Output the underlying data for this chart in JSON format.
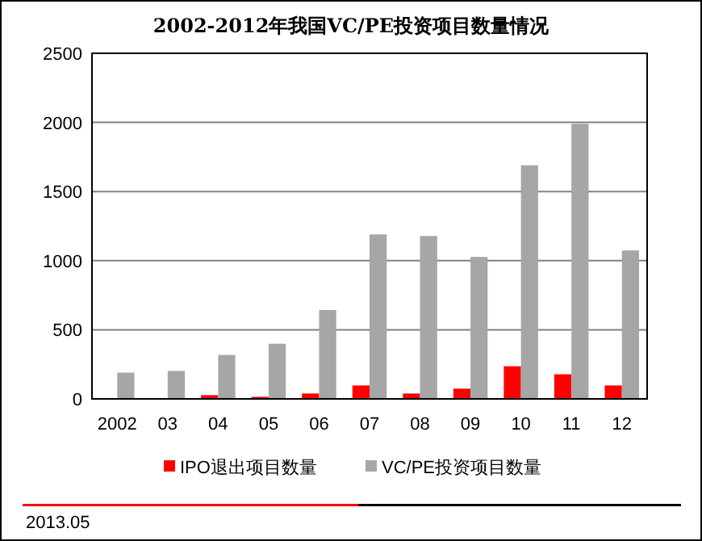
{
  "chart_data": {
    "type": "bar",
    "title": "2002-2012年我国VC/PE投资项目数量情况",
    "categories": [
      "2002",
      "03",
      "04",
      "05",
      "06",
      "07",
      "08",
      "09",
      "10",
      "11",
      "12"
    ],
    "series": [
      {
        "name": "IPO退出项目数量",
        "color": "#ff0000",
        "values": [
          0,
          0,
          27,
          15,
          39,
          97,
          39,
          74,
          236,
          178,
          97
        ]
      },
      {
        "name": "VC/PE投资项目数量",
        "color": "#a6a6a6",
        "values": [
          190,
          202,
          318,
          399,
          643,
          1190,
          1178,
          1027,
          1690,
          1990,
          1074
        ]
      }
    ],
    "ylim": [
      0,
      2500
    ],
    "yticks": [
      0,
      500,
      1000,
      1500,
      2000,
      2500
    ],
    "grid": "y",
    "legend": "bottom",
    "annotations": [
      "2013.05"
    ]
  }
}
